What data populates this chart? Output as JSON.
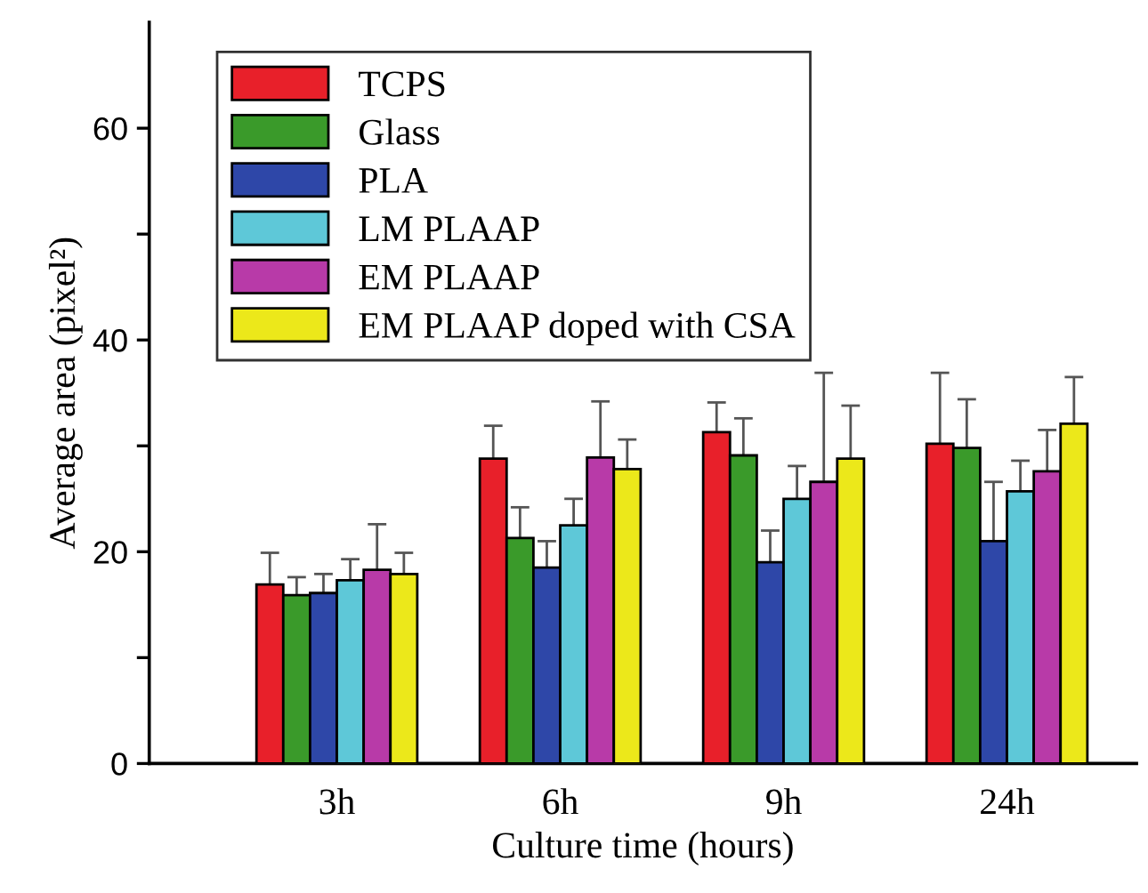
{
  "chart_data": {
    "type": "bar",
    "xlabel": "Culture time (hours)",
    "ylabel": "Average area (pixel²)",
    "categories": [
      "3h",
      "6h",
      "9h",
      "24h"
    ],
    "ylim": [
      0,
      70
    ],
    "yticks": [
      0,
      {
        "value": 10,
        "label": null
      },
      20,
      {
        "value": 30,
        "label": null
      },
      40,
      {
        "value": 50,
        "label": null
      },
      60
    ],
    "grid": false,
    "legend": "top left",
    "series": [
      {
        "name": "TCPS",
        "color": "#e8202a",
        "values": [
          16.9,
          28.8,
          31.3,
          30.2
        ],
        "errors": [
          [
            16.9,
            19.9
          ],
          [
            28.8,
            31.9
          ],
          [
            31.3,
            34.1
          ],
          [
            30.2,
            36.9
          ]
        ]
      },
      {
        "name": "Glass",
        "color": "#3a9a2a",
        "values": [
          15.9,
          21.3,
          29.1,
          29.8
        ],
        "errors": [
          [
            15.9,
            17.6
          ],
          [
            21.3,
            24.2
          ],
          [
            29.1,
            32.6
          ],
          [
            29.8,
            34.4
          ]
        ]
      },
      {
        "name": "PLA",
        "color": "#2e47a8",
        "values": [
          16.1,
          18.5,
          19.0,
          21.0
        ],
        "errors": [
          [
            16.1,
            17.9
          ],
          [
            18.5,
            21.0
          ],
          [
            19.0,
            22.0
          ],
          [
            21.0,
            26.6
          ]
        ]
      },
      {
        "name": "LM PLAAP",
        "color": "#5ec8d8",
        "values": [
          17.3,
          22.5,
          25.0,
          25.7
        ],
        "errors": [
          [
            17.3,
            19.3
          ],
          [
            22.5,
            25.0
          ],
          [
            25.0,
            28.1
          ],
          [
            25.7,
            28.6
          ]
        ]
      },
      {
        "name": "EM PLAAP",
        "color": "#b83aa8",
        "values": [
          18.3,
          28.9,
          26.6,
          27.6
        ],
        "errors": [
          [
            18.3,
            22.6
          ],
          [
            28.9,
            34.2
          ],
          [
            26.6,
            36.9
          ],
          [
            27.6,
            31.5
          ]
        ]
      },
      {
        "name": "EM PLAAP doped with CSA",
        "color": "#ece81a",
        "values": [
          17.9,
          27.8,
          28.8,
          32.1
        ],
        "errors": [
          [
            17.9,
            19.9
          ],
          [
            27.8,
            30.6
          ],
          [
            28.8,
            33.8
          ],
          [
            32.1,
            36.5
          ]
        ]
      }
    ]
  }
}
